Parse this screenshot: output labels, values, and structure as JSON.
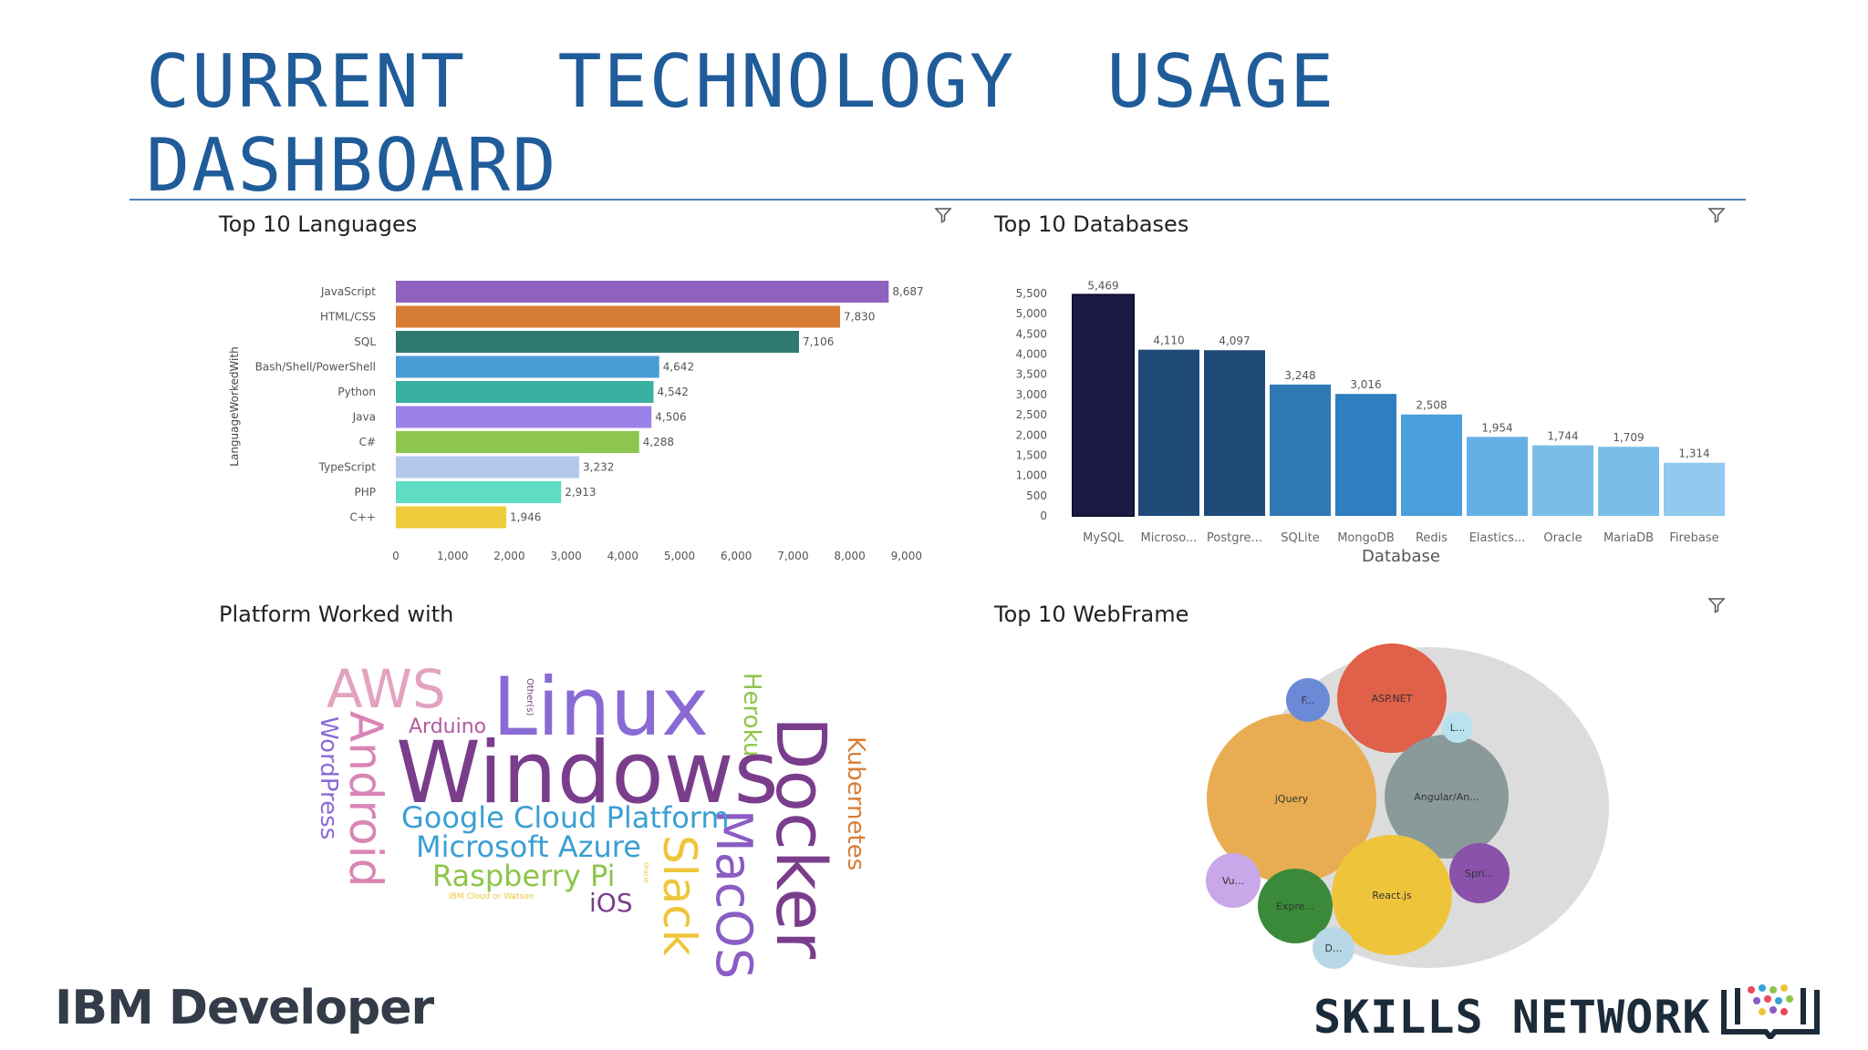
{
  "slide": {
    "title_line1": "CURRENT  TECHNOLOGY  USAGE",
    "title_line2": "DASHBOARD",
    "footer_left": "IBM Developer",
    "footer_right": "SKILLS NETWORK",
    "title_color": "#1f5c99"
  },
  "panels": {
    "languages_title": "Top 10 Languages",
    "databases_title": "Top 10 Databases",
    "platforms_title": "Platform Worked with",
    "webframe_title": "Top 10 WebFrame"
  },
  "chart_data": [
    {
      "type": "bar",
      "orientation": "horizontal",
      "title": "Top 10 Languages",
      "ylabel": "LanguageWorkedWith",
      "xlabel": "",
      "categories": [
        "JavaScript",
        "HTML/CSS",
        "SQL",
        "Bash/Shell/PowerShell",
        "Python",
        "Java",
        "C#",
        "TypeScript",
        "PHP",
        "C++"
      ],
      "values": [
        8687,
        7830,
        7106,
        4642,
        4542,
        4506,
        4288,
        3232,
        2913,
        1946
      ],
      "value_labels": [
        "8,687",
        "7,830",
        "7,106",
        "4,642",
        "4,542",
        "4,506",
        "4,288",
        "3,232",
        "2,913",
        "1,946"
      ],
      "colors": [
        "#8e62be",
        "#d87d36",
        "#2e7a70",
        "#4a9cd4",
        "#3ab0a0",
        "#9b82e6",
        "#8cc64e",
        "#b4c8ee",
        "#5edcc4",
        "#efcc3c"
      ],
      "xlim": [
        0,
        9000
      ],
      "xticks": [
        0,
        1000,
        2000,
        3000,
        4000,
        5000,
        6000,
        7000,
        8000,
        9000
      ],
      "xtick_labels": [
        "0",
        "1,000",
        "2,000",
        "3,000",
        "4,000",
        "5,000",
        "6,000",
        "7,000",
        "8,000",
        "9,000"
      ],
      "grid": false,
      "legend": "none"
    },
    {
      "type": "bar",
      "orientation": "vertical",
      "title": "Top 10 Databases",
      "xlabel": "Database",
      "ylabel": "",
      "categories": [
        "MySQL",
        "Microso...",
        "Postgre...",
        "SQLite",
        "MongoDB",
        "Redis",
        "Elastics...",
        "Oracle",
        "MariaDB",
        "Firebase"
      ],
      "values": [
        5469,
        4110,
        4097,
        3248,
        3016,
        2508,
        1954,
        1744,
        1709,
        1314
      ],
      "value_labels": [
        "5,469",
        "4,110",
        "4,097",
        "3,248",
        "3,016",
        "2,508",
        "1,954",
        "1,744",
        "1,709",
        "1,314"
      ],
      "colors": [
        "#1b1a45",
        "#1f4a78",
        "#1f4a78",
        "#2f78b4",
        "#2f7fc0",
        "#4a9edc",
        "#64b0e6",
        "#7cbde8",
        "#7cbde8",
        "#90c8ee"
      ],
      "ylim": [
        0,
        5500
      ],
      "yticks": [
        0,
        500,
        1000,
        1500,
        2000,
        2500,
        3000,
        3500,
        4000,
        4500,
        5000,
        5500
      ],
      "ytick_labels": [
        "0",
        "500",
        "1,000",
        "1,500",
        "2,000",
        "2,500",
        "3,000",
        "3,500",
        "4,000",
        "4,500",
        "5,000",
        "5,500"
      ],
      "grid": false,
      "legend": "none"
    },
    {
      "type": "wordcloud",
      "title": "Platform Worked with",
      "words": [
        {
          "text": "Windows",
          "color": "#7a3d8c"
        },
        {
          "text": "Linux",
          "color": "#8a6bd6"
        },
        {
          "text": "Docker",
          "color": "#7a3d8c"
        },
        {
          "text": "AWS",
          "color": "#e3a3c0"
        },
        {
          "text": "Android",
          "color": "#d985b5"
        },
        {
          "text": "MacOS",
          "color": "#8a5cc4"
        },
        {
          "text": "Slack",
          "color": "#eec53a"
        },
        {
          "text": "Google Cloud Platform",
          "color": "#3a9fd4"
        },
        {
          "text": "Microsoft Azure",
          "color": "#3a9fd4"
        },
        {
          "text": "Raspberry Pi",
          "color": "#8ec44a"
        },
        {
          "text": "Kubernetes",
          "color": "#d87d36"
        },
        {
          "text": "Heroku",
          "color": "#8ec44a"
        },
        {
          "text": "WordPress",
          "color": "#8a6bd6"
        },
        {
          "text": "Arduino",
          "color": "#b45aa0"
        },
        {
          "text": "iOS",
          "color": "#7a3d8c"
        },
        {
          "text": "Other(s)",
          "color": "#7a3d8c"
        },
        {
          "text": "IBM Cloud or Watson",
          "color": "#eec53a"
        },
        {
          "text": "Oracle",
          "color": "#eec53a"
        }
      ]
    },
    {
      "type": "bubble",
      "title": "Top 10 WebFrame",
      "bubbles": [
        {
          "label": "jQuery",
          "color": "#e8ad52"
        },
        {
          "label": "ASP.NET",
          "color": "#e0604a"
        },
        {
          "label": "Angular/An...",
          "color": "#8a9a9a"
        },
        {
          "label": "React.js",
          "color": "#eec53a"
        },
        {
          "label": "Expre...",
          "color": "#3a8a3a"
        },
        {
          "label": "Spri...",
          "color": "#8a52aa"
        },
        {
          "label": "Vu...",
          "color": "#c8a8e8"
        },
        {
          "label": "F...",
          "color": "#6a8ad8"
        },
        {
          "label": "L...",
          "color": "#b8e2ee"
        },
        {
          "label": "D...",
          "color": "#b8d8e8"
        }
      ]
    }
  ]
}
